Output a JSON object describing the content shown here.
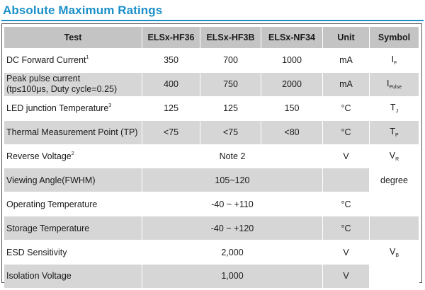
{
  "title": "Absolute Maximum Ratings",
  "headers": [
    "Test",
    "ELSx-HF36",
    "ELSx-HF3B",
    "ELSx-NF34",
    "Unit",
    "Symbol"
  ],
  "rows": [
    {
      "test": "DC Forward Current",
      "sup": "1",
      "hf36": "350",
      "hf3b": "700",
      "nf34": "1000",
      "unit": "mA",
      "sym": "I",
      "sym_sub": "F"
    },
    {
      "test_line1": "Peak pulse current",
      "test_line2": "(tp≤100μs, Duty cycle=0.25)",
      "hf36": "400",
      "hf3b": "750",
      "nf34": "2000",
      "unit": "mA",
      "sym": "I",
      "sym_sub": "Pulse"
    },
    {
      "test": "LED junction Temperature",
      "sup": "3",
      "hf36": "125",
      "hf3b": "125",
      "nf34": "150",
      "unit": "°C",
      "sym": "T",
      "sym_sub": "J"
    },
    {
      "test": "Thermal Measurement Point (TP)",
      "hf36": "<75",
      "hf3b": "<75",
      "nf34": "<80",
      "unit": "°C",
      "sym": "T",
      "sym_sub": "P"
    },
    {
      "test": "Reverse Voltage",
      "sup": "2",
      "span_value": "Note 2",
      "unit": "V",
      "sym": "V",
      "sym_sub": "R"
    },
    {
      "test": "Viewing Angle(FWHM)",
      "span_value": "105~120",
      "unit": "",
      "sym": "degree"
    },
    {
      "test": "Operating Temperature",
      "span_value": "-40 ~ +110",
      "unit": "°C"
    },
    {
      "test": "Storage Temperature",
      "span_value": "-40 ~ +120",
      "unit": "°C"
    },
    {
      "test": "ESD Sensitivity",
      "span_value": "2,000",
      "unit": "V",
      "sym": "V",
      "sym_sub": "B"
    },
    {
      "test": "Isolation Voltage",
      "span_value": "1,000",
      "unit": "V"
    }
  ]
}
